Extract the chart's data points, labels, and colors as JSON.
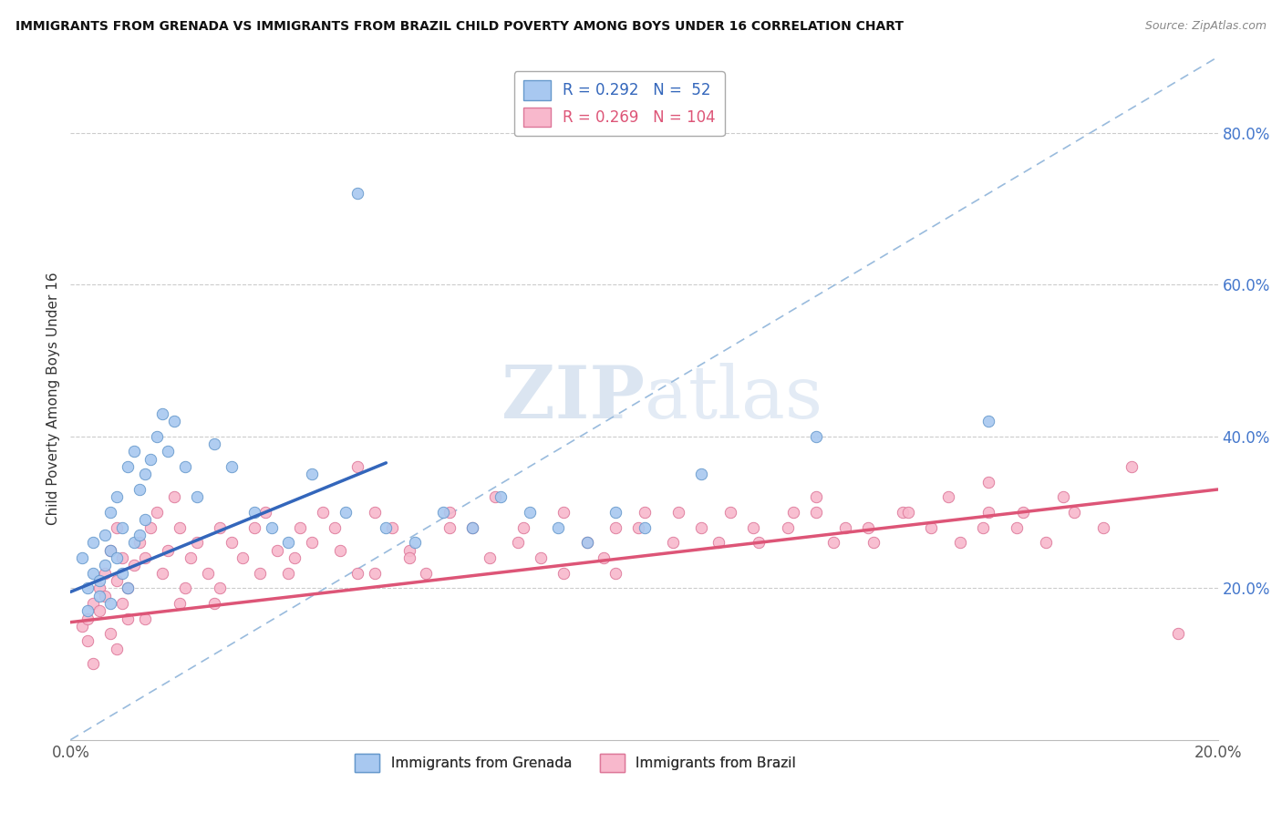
{
  "title": "IMMIGRANTS FROM GRENADA VS IMMIGRANTS FROM BRAZIL CHILD POVERTY AMONG BOYS UNDER 16 CORRELATION CHART",
  "source": "Source: ZipAtlas.com",
  "ylabel": "Child Poverty Among Boys Under 16",
  "xlim": [
    0.0,
    0.2
  ],
  "ylim": [
    0.0,
    0.9
  ],
  "xtick_positions": [
    0.0,
    0.2
  ],
  "xticklabels": [
    "0.0%",
    "20.0%"
  ],
  "ytick_positions": [
    0.2,
    0.4,
    0.6,
    0.8
  ],
  "ytick_labels": [
    "20.0%",
    "40.0%",
    "60.0%",
    "80.0%"
  ],
  "grenada_fill_color": "#a8c8f0",
  "brazil_fill_color": "#f8b8cc",
  "grenada_edge_color": "#6699cc",
  "brazil_edge_color": "#dd7799",
  "grenada_line_color": "#3366bb",
  "brazil_line_color": "#dd5577",
  "diagonal_color": "#99bbdd",
  "R_grenada": 0.292,
  "N_grenada": 52,
  "R_brazil": 0.269,
  "N_brazil": 104,
  "watermark_zip": "ZIP",
  "watermark_atlas": "atlas",
  "legend_labels": [
    "Immigrants from Grenada",
    "Immigrants from Brazil"
  ],
  "grenada_scatter_x": [
    0.002,
    0.003,
    0.003,
    0.004,
    0.004,
    0.005,
    0.005,
    0.006,
    0.006,
    0.007,
    0.007,
    0.007,
    0.008,
    0.008,
    0.009,
    0.009,
    0.01,
    0.01,
    0.011,
    0.011,
    0.012,
    0.012,
    0.013,
    0.013,
    0.014,
    0.015,
    0.016,
    0.017,
    0.018,
    0.02,
    0.022,
    0.025,
    0.028,
    0.032,
    0.035,
    0.038,
    0.042,
    0.048,
    0.055,
    0.06,
    0.065,
    0.07,
    0.075,
    0.08,
    0.085,
    0.09,
    0.095,
    0.1,
    0.11,
    0.13,
    0.05,
    0.16
  ],
  "grenada_scatter_y": [
    0.24,
    0.2,
    0.17,
    0.26,
    0.22,
    0.21,
    0.19,
    0.27,
    0.23,
    0.3,
    0.25,
    0.18,
    0.32,
    0.24,
    0.28,
    0.22,
    0.36,
    0.2,
    0.38,
    0.26,
    0.33,
    0.27,
    0.35,
    0.29,
    0.37,
    0.4,
    0.43,
    0.38,
    0.42,
    0.36,
    0.32,
    0.39,
    0.36,
    0.3,
    0.28,
    0.26,
    0.35,
    0.3,
    0.28,
    0.26,
    0.3,
    0.28,
    0.32,
    0.3,
    0.28,
    0.26,
    0.3,
    0.28,
    0.35,
    0.4,
    0.72,
    0.42
  ],
  "brazil_scatter_x": [
    0.002,
    0.003,
    0.003,
    0.004,
    0.005,
    0.005,
    0.006,
    0.006,
    0.007,
    0.007,
    0.008,
    0.008,
    0.009,
    0.009,
    0.01,
    0.01,
    0.011,
    0.012,
    0.013,
    0.014,
    0.015,
    0.016,
    0.017,
    0.018,
    0.019,
    0.02,
    0.021,
    0.022,
    0.024,
    0.026,
    0.028,
    0.03,
    0.032,
    0.034,
    0.036,
    0.038,
    0.04,
    0.042,
    0.044,
    0.047,
    0.05,
    0.053,
    0.056,
    0.059,
    0.062,
    0.066,
    0.07,
    0.074,
    0.078,
    0.082,
    0.086,
    0.09,
    0.095,
    0.1,
    0.105,
    0.11,
    0.115,
    0.12,
    0.125,
    0.13,
    0.135,
    0.14,
    0.145,
    0.15,
    0.155,
    0.16,
    0.165,
    0.17,
    0.175,
    0.18,
    0.008,
    0.013,
    0.019,
    0.026,
    0.033,
    0.039,
    0.046,
    0.053,
    0.059,
    0.066,
    0.073,
    0.079,
    0.086,
    0.093,
    0.099,
    0.106,
    0.113,
    0.119,
    0.126,
    0.133,
    0.139,
    0.146,
    0.153,
    0.159,
    0.166,
    0.173,
    0.004,
    0.025,
    0.05,
    0.095,
    0.13,
    0.16,
    0.185,
    0.193
  ],
  "brazil_scatter_y": [
    0.15,
    0.13,
    0.16,
    0.18,
    0.2,
    0.17,
    0.22,
    0.19,
    0.25,
    0.14,
    0.28,
    0.21,
    0.24,
    0.18,
    0.2,
    0.16,
    0.23,
    0.26,
    0.24,
    0.28,
    0.3,
    0.22,
    0.25,
    0.32,
    0.28,
    0.2,
    0.24,
    0.26,
    0.22,
    0.28,
    0.26,
    0.24,
    0.28,
    0.3,
    0.25,
    0.22,
    0.28,
    0.26,
    0.3,
    0.25,
    0.22,
    0.3,
    0.28,
    0.25,
    0.22,
    0.3,
    0.28,
    0.32,
    0.26,
    0.24,
    0.3,
    0.26,
    0.28,
    0.3,
    0.26,
    0.28,
    0.3,
    0.26,
    0.28,
    0.3,
    0.28,
    0.26,
    0.3,
    0.28,
    0.26,
    0.3,
    0.28,
    0.26,
    0.3,
    0.28,
    0.12,
    0.16,
    0.18,
    0.2,
    0.22,
    0.24,
    0.28,
    0.22,
    0.24,
    0.28,
    0.24,
    0.28,
    0.22,
    0.24,
    0.28,
    0.3,
    0.26,
    0.28,
    0.3,
    0.26,
    0.28,
    0.3,
    0.32,
    0.28,
    0.3,
    0.32,
    0.1,
    0.18,
    0.36,
    0.22,
    0.32,
    0.34,
    0.36,
    0.14
  ],
  "grenada_trend_x": [
    0.0,
    0.055
  ],
  "grenada_trend_y": [
    0.195,
    0.365
  ],
  "brazil_trend_x": [
    0.0,
    0.2
  ],
  "brazil_trend_y": [
    0.155,
    0.33
  ]
}
